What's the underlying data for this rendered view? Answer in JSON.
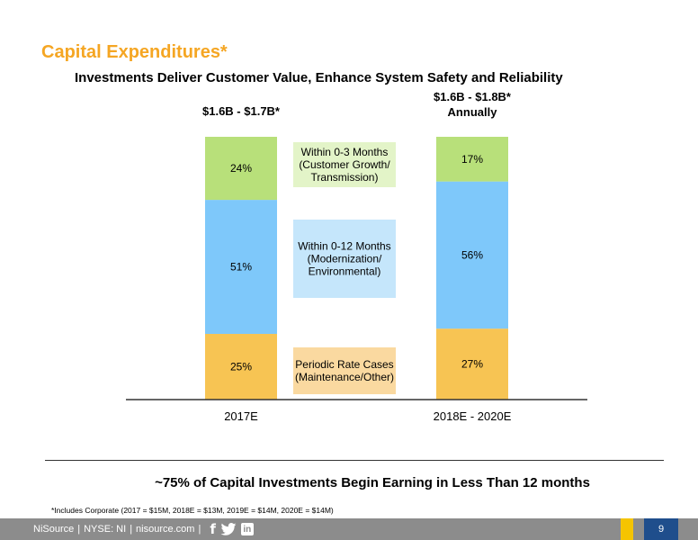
{
  "slide": {
    "title": "Capital Expenditures*",
    "subtitle": "Investments Deliver Customer Value, Enhance System Safety and Reliability",
    "tagline": "~75% of Capital Investments Begin Earning in Less Than 12 months",
    "footnote": "*Includes Corporate (2017 = $15M, 2018E = $13M, 2019E = $14M, 2020E = $14M)",
    "page_number": "9"
  },
  "footer": {
    "company": "NiSource",
    "ticker": "NYSE: NI",
    "website": "nisource.com",
    "separator": "|",
    "facebook_glyph": "f",
    "linkedin_glyph": "in",
    "icons": [
      "facebook-icon",
      "twitter-icon",
      "linkedin-icon"
    ]
  },
  "colors": {
    "title": "#F5A623",
    "green": "#B8E07A",
    "blue": "#7EC8FA",
    "orange": "#F7C453",
    "light_green": "#E3F4C8",
    "light_blue": "#C5E6FB",
    "light_orange": "#FAD9A0",
    "footer_gray": "#8C8C8C",
    "footer_yellow": "#F5C400",
    "footer_blue": "#1F4E8C"
  },
  "chart_data": {
    "type": "bar",
    "stacked": true,
    "categories": [
      "2017E",
      "2018E - 2020E"
    ],
    "category_totals": [
      "$1.6B - $1.7B*",
      "$1.6B - $1.8B*\nAnnually"
    ],
    "ylim": [
      0,
      100
    ],
    "series": [
      {
        "name": "Periodic Rate Cases\n(Maintenance/Other)",
        "values": [
          25,
          27
        ],
        "labels": [
          "25%",
          "27%"
        ],
        "color": "#F7C453",
        "legend_color": "#FAD9A0"
      },
      {
        "name": "Within 0-12 Months\n(Modernization/\nEnvironmental)",
        "values": [
          51,
          56
        ],
        "labels": [
          "51%",
          "56%"
        ],
        "color": "#7EC8FA",
        "legend_color": "#C5E6FB"
      },
      {
        "name": "Within 0-3 Months\n(Customer Growth/\nTransmission)",
        "values": [
          24,
          17
        ],
        "labels": [
          "24%",
          "17%"
        ],
        "color": "#B8E07A",
        "legend_color": "#E3F4C8"
      }
    ],
    "grid": false,
    "legend_position": "center-between-bars"
  }
}
